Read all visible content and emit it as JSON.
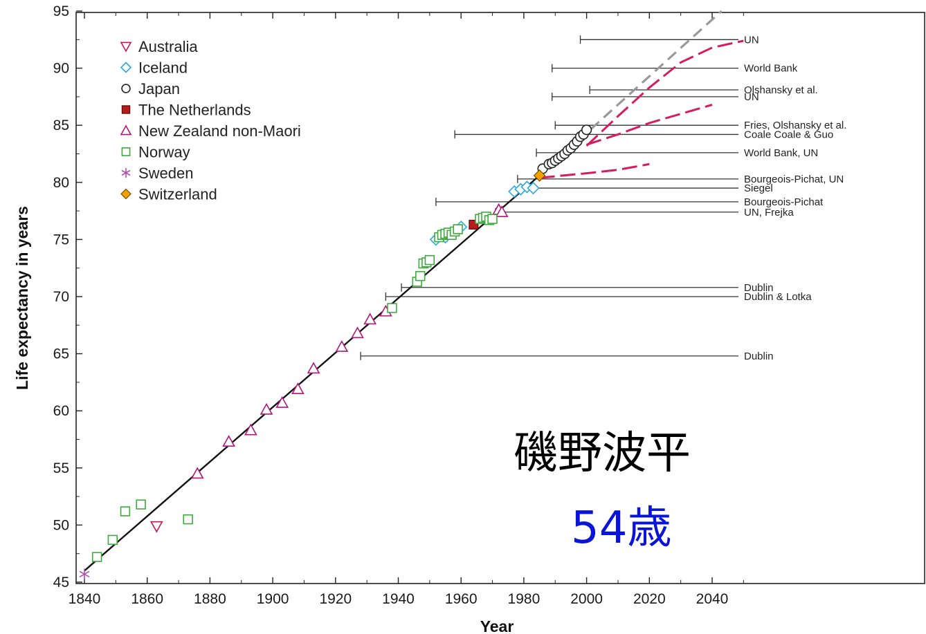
{
  "chart_data": {
    "type": "scatter",
    "title": "",
    "xlabel": "Year",
    "ylabel": "Life expectancy in years",
    "xlim": [
      1840,
      2050
    ],
    "ylim": [
      45,
      95
    ],
    "xticks": [
      1840,
      1860,
      1880,
      1900,
      1920,
      1940,
      1960,
      1980,
      2000,
      2020,
      2040
    ],
    "yticks": [
      45,
      50,
      55,
      60,
      65,
      70,
      75,
      80,
      85,
      90,
      95
    ],
    "legend_position": "top-left",
    "series": [
      {
        "name": "Australia",
        "marker": "triangle-down",
        "color": "#c2185b",
        "points": [
          [
            1863,
            49.9
          ]
        ]
      },
      {
        "name": "Iceland",
        "marker": "diamond",
        "color": "#29a8e0",
        "points": [
          [
            1952,
            75.0
          ],
          [
            1955,
            75.2
          ],
          [
            1960,
            76.1
          ],
          [
            1977,
            79.2
          ],
          [
            1979,
            79.4
          ],
          [
            1981,
            79.6
          ],
          [
            1983,
            79.5
          ]
        ]
      },
      {
        "name": "Japan",
        "marker": "circle",
        "color": "#222222",
        "points": [
          [
            1986,
            81.2
          ],
          [
            1988,
            81.6
          ],
          [
            1989,
            81.7
          ],
          [
            1990,
            81.9
          ],
          [
            1991,
            82.1
          ],
          [
            1992,
            82.3
          ],
          [
            1993,
            82.5
          ],
          [
            1994,
            82.8
          ],
          [
            1995,
            83.0
          ],
          [
            1996,
            83.3
          ],
          [
            1997,
            83.6
          ],
          [
            1998,
            84.0
          ],
          [
            1999,
            84.2
          ],
          [
            2000,
            84.6
          ]
        ]
      },
      {
        "name": "The Netherlands",
        "marker": "square-filled",
        "color": "#b71c1c",
        "points": [
          [
            1964,
            76.3
          ]
        ]
      },
      {
        "name": "New Zealand non-Maori",
        "marker": "triangle-up",
        "color": "#b0167a",
        "points": [
          [
            1876,
            54.5
          ],
          [
            1886,
            57.3
          ],
          [
            1893,
            58.3
          ],
          [
            1898,
            60.1
          ],
          [
            1903,
            60.7
          ],
          [
            1908,
            61.9
          ],
          [
            1913,
            63.7
          ],
          [
            1922,
            65.6
          ],
          [
            1927,
            66.8
          ],
          [
            1931,
            68.0
          ],
          [
            1936,
            68.7
          ],
          [
            1972,
            77.6
          ],
          [
            1973,
            77.4
          ]
        ]
      },
      {
        "name": "Norway",
        "marker": "square-open",
        "color": "#3cab3c",
        "points": [
          [
            1844,
            47.2
          ],
          [
            1849,
            48.7
          ],
          [
            1853,
            51.2
          ],
          [
            1858,
            51.8
          ],
          [
            1873,
            50.5
          ],
          [
            1938,
            69.0
          ],
          [
            1946,
            71.3
          ],
          [
            1947,
            71.8
          ],
          [
            1948,
            72.9
          ],
          [
            1949,
            73.0
          ],
          [
            1950,
            73.2
          ],
          [
            1953,
            75.2
          ],
          [
            1954,
            75.4
          ],
          [
            1955,
            75.5
          ],
          [
            1956,
            75.6
          ],
          [
            1957,
            75.4
          ],
          [
            1958,
            75.7
          ],
          [
            1959,
            75.9
          ],
          [
            1966,
            76.8
          ],
          [
            1967,
            76.9
          ],
          [
            1968,
            77.0
          ],
          [
            1969,
            76.7
          ],
          [
            1970,
            76.8
          ]
        ]
      },
      {
        "name": "Sweden",
        "marker": "asterisk",
        "color": "#b04fb0",
        "points": [
          [
            1840,
            45.7
          ]
        ]
      },
      {
        "name": "Switzerland",
        "marker": "diamond-filled",
        "color": "#f0a000",
        "points": [
          [
            1985,
            80.6
          ]
        ]
      }
    ],
    "trend_line": {
      "from": [
        1840,
        46.0
      ],
      "to": [
        1985,
        80.6
      ],
      "color": "#111111"
    },
    "trend_extension": {
      "from": [
        1985,
        80.6
      ],
      "to": [
        2043,
        95.0
      ],
      "color": "#999999",
      "style": "dashed"
    },
    "forecast_curves": [
      {
        "color": "#d81b60",
        "points": [
          [
            2000,
            83.2
          ],
          [
            2010,
            85.8
          ],
          [
            2020,
            88.3
          ],
          [
            2030,
            90.5
          ],
          [
            2040,
            91.8
          ],
          [
            2050,
            92.4
          ]
        ]
      },
      {
        "color": "#d81b60",
        "points": [
          [
            2000,
            83.3
          ],
          [
            2010,
            84.2
          ],
          [
            2020,
            85.2
          ],
          [
            2030,
            86.0
          ],
          [
            2040,
            86.8
          ]
        ]
      },
      {
        "color": "#d81b60",
        "points": [
          [
            1985,
            80.4
          ],
          [
            2000,
            80.8
          ],
          [
            2010,
            81.1
          ],
          [
            2020,
            81.6
          ]
        ]
      }
    ],
    "forecast_lines": [
      {
        "label": "UN",
        "start": 1998,
        "y": 92.5
      },
      {
        "label": "World Bank",
        "start": 1989,
        "y": 90.0
      },
      {
        "label": "Olshansky et al.",
        "start": 2001,
        "y": 88.1
      },
      {
        "label": "UN",
        "start": 1989,
        "y": 87.5
      },
      {
        "label": "Fries, Olshansky et al.",
        "start": 1990,
        "y": 85.0
      },
      {
        "label": "Coale   Coale & Guo",
        "start": 1958,
        "y": 84.2
      },
      {
        "label": "World Bank, UN",
        "start": 1984,
        "y": 82.6
      },
      {
        "label": "Bourgeois-Pichat, UN",
        "start": 1978,
        "y": 80.3
      },
      {
        "label": "Siegel",
        "start": 1979,
        "y": 79.5
      },
      {
        "label": "Bourgeois-Pichat",
        "start": 1952,
        "y": 78.3
      },
      {
        "label": "UN, Frejka",
        "start": 1971,
        "y": 77.4
      },
      {
        "label": "Dublin",
        "start": 1941,
        "y": 70.8
      },
      {
        "label": "Dublin & Lotka",
        "start": 1936,
        "y": 70.0
      },
      {
        "label": "Dublin",
        "start": 1928,
        "y": 64.8
      }
    ],
    "annotations": {
      "name": "磯野波平",
      "age": "54歳"
    }
  }
}
